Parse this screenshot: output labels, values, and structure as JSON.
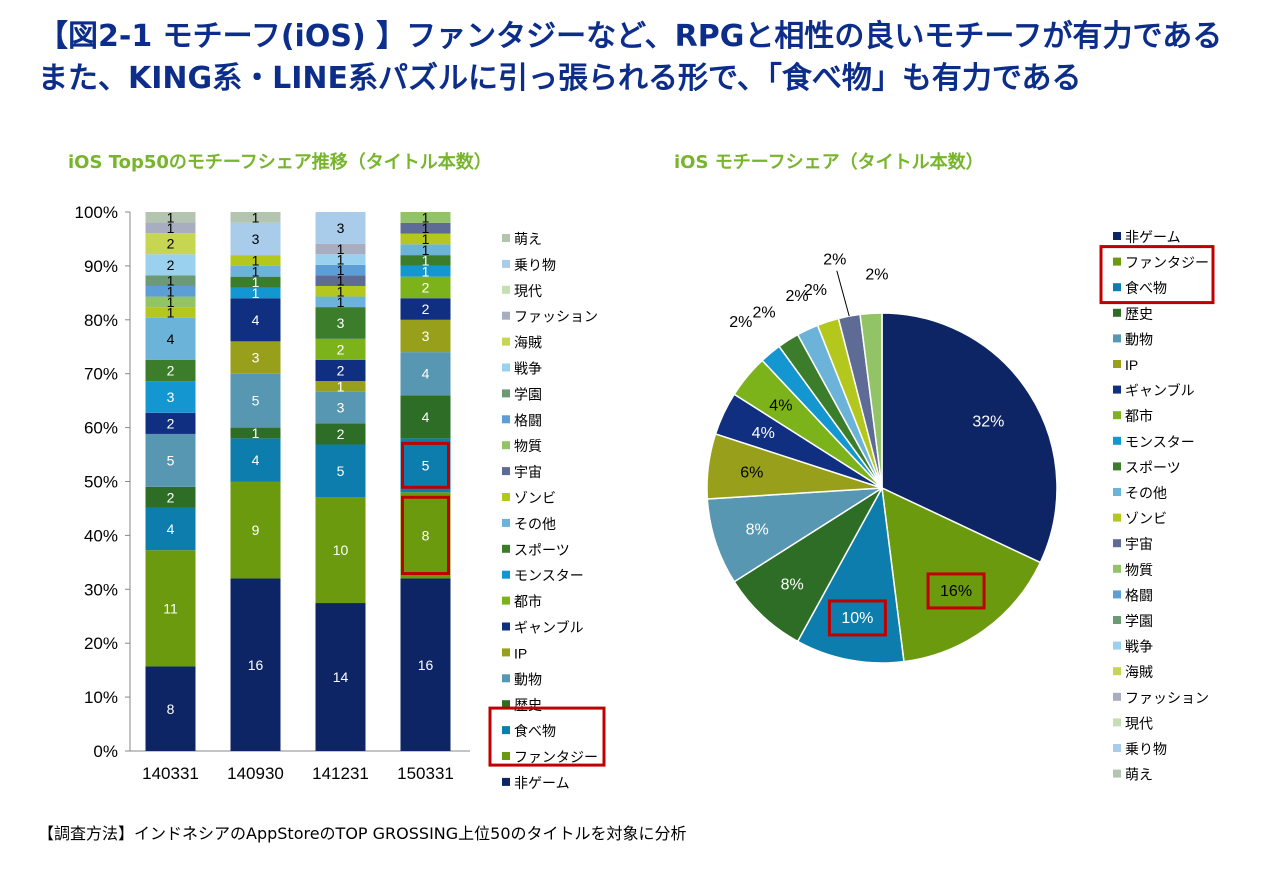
{
  "header": {
    "title_line1": "【図2-1 モチーフ(iOS) 】ファンタジーなど、RPGと相性の良いモチーフが有力である",
    "title_line2": "また、KING系・LINE系パズルに引っ張られる形で、「食べ物」も有力である"
  },
  "footnote": "【調査方法】インドネシアのAppStoreのTOP GROSSING上位50のタイトルを対象に分析",
  "colors": {
    "非ゲーム": "#0d2565",
    "ファンタジー": "#6b9a0e",
    "食べ物": "#0c7dad",
    "歴史": "#2e6d25",
    "動物": "#5797b2",
    "IP": "#98a01b",
    "ギャンブル": "#112f80",
    "都市": "#7cb31b",
    "モンスター": "#1497d0",
    "スポーツ": "#3b7d2a",
    "その他": "#6bb3d8",
    "ゾンビ": "#b3c71c",
    "宇宙": "#5e6b94",
    "物質": "#92c467",
    "格闘": "#5b9fd6",
    "学園": "#6c9a74",
    "戦争": "#9ad1ee",
    "海賊": "#c6d552",
    "ファッション": "#a8aec0",
    "現代": "#c5dfb3",
    "乗り物": "#a9cceb",
    "萌え": "#b3c5b0",
    "highlight": "#c00000"
  },
  "chart_data": [
    {
      "type": "bar",
      "stacked": "percent",
      "title": "iOS Top50のモチーフシェア推移（タイトル本数）",
      "categories": [
        "140331",
        "140930",
        "141231",
        "150331"
      ],
      "ylim": [
        0,
        100
      ],
      "y_ticks": [
        "0%",
        "10%",
        "20%",
        "30%",
        "40%",
        "50%",
        "60%",
        "70%",
        "80%",
        "90%",
        "100%"
      ],
      "series": [
        {
          "name": "非ゲーム",
          "values": [
            8,
            16,
            14,
            16
          ]
        },
        {
          "name": "ファンタジー",
          "values": [
            11,
            9,
            10,
            8
          ]
        },
        {
          "name": "食べ物",
          "values": [
            4,
            4,
            5,
            5
          ]
        },
        {
          "name": "歴史",
          "values": [
            2,
            1,
            2,
            4
          ]
        },
        {
          "name": "動物",
          "values": [
            5,
            5,
            3,
            4
          ]
        },
        {
          "name": "IP",
          "values": [
            0,
            3,
            1,
            3
          ]
        },
        {
          "name": "ギャンブル",
          "values": [
            2,
            4,
            2,
            2
          ]
        },
        {
          "name": "都市",
          "values": [
            0,
            0,
            2,
            2
          ]
        },
        {
          "name": "モンスター",
          "values": [
            3,
            1,
            0,
            1
          ]
        },
        {
          "name": "スポーツ",
          "values": [
            2,
            1,
            3,
            1
          ]
        },
        {
          "name": "その他",
          "values": [
            4,
            1,
            1,
            1
          ]
        },
        {
          "name": "ゾンビ",
          "values": [
            1,
            1,
            1,
            1
          ]
        },
        {
          "name": "宇宙",
          "values": [
            0,
            0,
            1,
            1
          ]
        },
        {
          "name": "物質",
          "values": [
            1,
            0,
            0,
            1
          ]
        },
        {
          "name": "格闘",
          "values": [
            1,
            0,
            1,
            0
          ]
        },
        {
          "name": "学園",
          "values": [
            1,
            0,
            0,
            0
          ]
        },
        {
          "name": "戦争",
          "values": [
            2,
            0,
            1,
            0
          ]
        },
        {
          "name": "海賊",
          "values": [
            2,
            0,
            0,
            0
          ]
        },
        {
          "name": "ファッション",
          "values": [
            1,
            0,
            1,
            0
          ]
        },
        {
          "name": "現代",
          "values": [
            0,
            0,
            0,
            0
          ]
        },
        {
          "name": "乗り物",
          "values": [
            0,
            3,
            3,
            0
          ]
        },
        {
          "name": "萌え",
          "values": [
            1,
            1,
            0,
            0
          ]
        }
      ],
      "legend_order": [
        "萌え",
        "乗り物",
        "現代",
        "ファッション",
        "海賊",
        "戦争",
        "学園",
        "格闘",
        "物質",
        "宇宙",
        "ゾンビ",
        "その他",
        "スポーツ",
        "モンスター",
        "都市",
        "ギャンブル",
        "IP",
        "動物",
        "歴史",
        "食べ物",
        "ファンタジー",
        "非ゲーム"
      ],
      "legend_position": "right",
      "highlighted_legend": [
        "食べ物",
        "ファンタジー"
      ],
      "highlighted_cells": [
        {
          "category": "150331",
          "series": "食べ物"
        },
        {
          "category": "150331",
          "series": "ファンタジー"
        }
      ]
    },
    {
      "type": "pie",
      "title": "iOS モチーフシェア（タイトル本数）",
      "slices": [
        {
          "name": "非ゲーム",
          "value": 32,
          "label": "32%"
        },
        {
          "name": "ファンタジー",
          "value": 16,
          "label": "16%"
        },
        {
          "name": "食べ物",
          "value": 10,
          "label": "10%"
        },
        {
          "name": "歴史",
          "value": 8,
          "label": "8%"
        },
        {
          "name": "動物",
          "value": 8,
          "label": "8%"
        },
        {
          "name": "IP",
          "value": 6,
          "label": "6%"
        },
        {
          "name": "ギャンブル",
          "value": 4,
          "label": "4%"
        },
        {
          "name": "都市",
          "value": 4,
          "label": "4%"
        },
        {
          "name": "モンスター",
          "value": 2,
          "label": "2%"
        },
        {
          "name": "スポーツ",
          "value": 2,
          "label": "2%"
        },
        {
          "name": "その他",
          "value": 2,
          "label": "2%"
        },
        {
          "name": "ゾンビ",
          "value": 2,
          "label": "2%"
        },
        {
          "name": "宇宙",
          "value": 2,
          "label": "2%"
        },
        {
          "name": "物質",
          "value": 2,
          "label": "2%"
        }
      ],
      "legend_order": [
        "非ゲーム",
        "ファンタジー",
        "食べ物",
        "歴史",
        "動物",
        "IP",
        "ギャンブル",
        "都市",
        "モンスター",
        "スポーツ",
        "その他",
        "ゾンビ",
        "宇宙",
        "物質",
        "格闘",
        "学園",
        "戦争",
        "海賊",
        "ファッション",
        "現代",
        "乗り物",
        "萌え"
      ],
      "legend_position": "right",
      "highlighted_legend": [
        "ファンタジー",
        "食べ物"
      ],
      "highlighted_slices": [
        "ファンタジー",
        "食べ物"
      ]
    }
  ]
}
